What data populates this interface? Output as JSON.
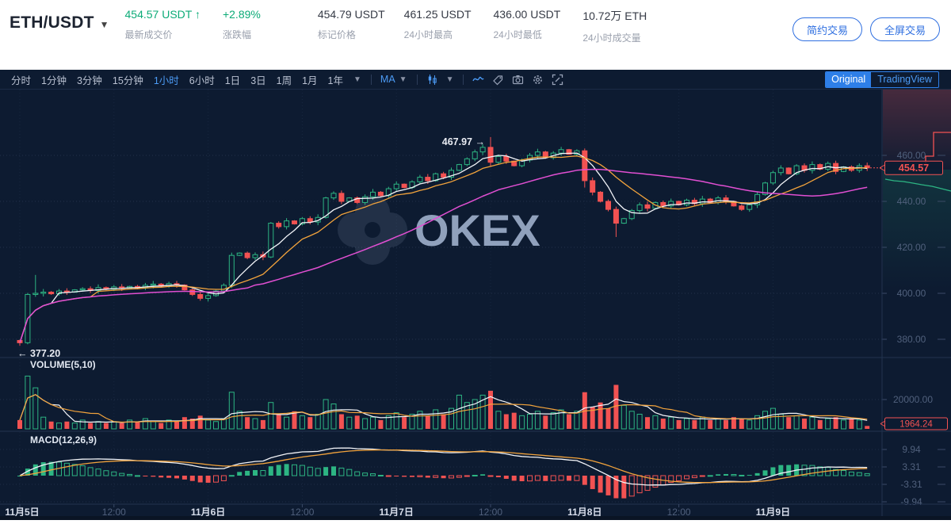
{
  "header": {
    "symbol": "ETH/USDT",
    "last_price": "454.57 USDT",
    "last_price_arrow": "↑",
    "last_price_label": "最新成交价",
    "change": "+2.89%",
    "change_label": "涨跌幅",
    "stats": [
      {
        "value": "454.79 USDT",
        "label": "标记价格"
      },
      {
        "value": "461.25 USDT",
        "label": "24小时最高"
      },
      {
        "value": "436.00 USDT",
        "label": "24小时最低"
      },
      {
        "value": "10.72万 ETH",
        "label": "24小时成交量"
      }
    ],
    "buttons": [
      "简约交易",
      "全屏交易"
    ]
  },
  "toolbar": {
    "timeframes": [
      "分时",
      "1分钟",
      "3分钟",
      "15分钟",
      "1小时",
      "6小时",
      "1日",
      "3日",
      "1周",
      "1月",
      "1年"
    ],
    "active_timeframe": "1小时",
    "ma_label": "MA",
    "icon_ids": [
      "candle-type",
      "line-style",
      "compare",
      "camera",
      "settings",
      "fullscreen"
    ],
    "toggle": {
      "original": "Original",
      "tradingview": "TradingView"
    }
  },
  "watermark": "OKEX",
  "colors": {
    "up": "#2db583",
    "down": "#f25252",
    "ma_fast": "#f2f4f8",
    "ma_mid": "#f2a33c",
    "ma_slow": "#e14fd2",
    "accent_blue": "#4c9bf5",
    "header_green": "#0cab77",
    "axis_dim": "#50607c",
    "axis_bright": "#d8deeb",
    "grid": "#6e82aa",
    "separator": "#223350",
    "bg": "#0d1b31"
  },
  "chart_data": {
    "type": "candlestick",
    "title": "ETH/USDT 1小时 K线 (OKEX)",
    "price_axis": {
      "ticks": [
        {
          "label": "460.00",
          "price": 460
        },
        {
          "label": "440.00",
          "price": 440
        },
        {
          "label": "420.00",
          "price": 420
        },
        {
          "label": "400.00",
          "price": 400
        },
        {
          "label": "380.00",
          "price": 380
        }
      ],
      "last_price_label": "454.57",
      "last_price": 454.57
    },
    "annotations": {
      "high_label": "467.97 →",
      "high_price": 467.97,
      "low_label": "← 377.20",
      "low_price": 377.2
    },
    "time_axis": [
      {
        "i": 0,
        "label": "11月5日",
        "major": true
      },
      {
        "i": 12,
        "label": "12:00",
        "major": false
      },
      {
        "i": 24,
        "label": "11月6日",
        "major": true
      },
      {
        "i": 36,
        "label": "12:00",
        "major": false
      },
      {
        "i": 48,
        "label": "11月7日",
        "major": true
      },
      {
        "i": 60,
        "label": "12:00",
        "major": false
      },
      {
        "i": 72,
        "label": "11月8日",
        "major": true
      },
      {
        "i": 84,
        "label": "12:00",
        "major": false
      },
      {
        "i": 96,
        "label": "11月9日",
        "major": true
      }
    ],
    "open0": 379.5,
    "closes": [
      378.5,
      399.5,
      400.0,
      400.5,
      399.8,
      401.0,
      400.5,
      401.5,
      402.0,
      401.2,
      402.5,
      401.8,
      402.8,
      402.2,
      403.0,
      402.4,
      403.5,
      404.0,
      403.2,
      404.2,
      403.6,
      401.5,
      399.5,
      397.8,
      399.0,
      401.0,
      403.5,
      416.5,
      417.5,
      415.5,
      416.8,
      415.8,
      430.5,
      429.0,
      431.5,
      430.2,
      432.5,
      431.0,
      433.0,
      441.5,
      443.5,
      440.0,
      441.5,
      439.5,
      442.0,
      444.0,
      442.5,
      445.5,
      447.5,
      446.0,
      448.5,
      450.5,
      449.0,
      452.0,
      450.5,
      453.5,
      456.0,
      458.5,
      461.5,
      463.5,
      457.0,
      459.5,
      457.5,
      455.5,
      458.0,
      460.0,
      461.5,
      459.0,
      461.0,
      462.5,
      460.5,
      462.0,
      449.0,
      444.0,
      440.0,
      436.5,
      430.5,
      432.5,
      436.0,
      438.5,
      437.0,
      439.5,
      438.0,
      440.0,
      438.5,
      440.5,
      439.0,
      441.0,
      439.5,
      441.5,
      440.0,
      438.0,
      436.5,
      438.5,
      443.0,
      448.0,
      452.5,
      454.5,
      452.0,
      455.5,
      453.5,
      456.0,
      454.0,
      456.5,
      453.0,
      455.0,
      453.5,
      455.5,
      454.57
    ],
    "wick_overrides": {
      "0": {
        "l": 377.2
      },
      "2": {
        "h": 408.0
      },
      "60": {
        "h": 467.97,
        "l": 455.0
      },
      "72": {
        "l": 446.0
      },
      "76": {
        "l": 424.5
      }
    },
    "volume": {
      "label": "VOLUME(5,10)",
      "axis_tick": {
        "label": "20000.00",
        "value": 20000
      },
      "last_label": "1964.24",
      "values_k": [
        6,
        36,
        28,
        8,
        5,
        4,
        5,
        4,
        6,
        4,
        5,
        4,
        5,
        4,
        6,
        5,
        7,
        5,
        4,
        6,
        5,
        8,
        7,
        9,
        6,
        5,
        7,
        25,
        12,
        8,
        7,
        6,
        18,
        10,
        8,
        12,
        9,
        8,
        10,
        20,
        17,
        10,
        8,
        9,
        7,
        8,
        6,
        9,
        11,
        8,
        10,
        12,
        9,
        13,
        10,
        14,
        23,
        18,
        20,
        23,
        26,
        12,
        10,
        11,
        9,
        10,
        12,
        9,
        11,
        13,
        10,
        12,
        25,
        15,
        18,
        14,
        30,
        16,
        12,
        10,
        8,
        9,
        7,
        8,
        6,
        7,
        6,
        8,
        6,
        7,
        6,
        8,
        7,
        6,
        9,
        12,
        14,
        10,
        8,
        9,
        7,
        8,
        6,
        7,
        8,
        6,
        7,
        6,
        2
      ]
    },
    "macd": {
      "label": "MACD(12,26,9)",
      "ticks": [
        {
          "label": "9.94",
          "value": 9.94
        },
        {
          "label": "3.31",
          "value": 3.31
        },
        {
          "label": "-3.31",
          "value": -3.31
        },
        {
          "label": "-9.94",
          "value": -9.94
        }
      ],
      "params": {
        "fast": 12,
        "slow": 26,
        "signal": 9
      }
    },
    "ma_windows": {
      "fast": 5,
      "mid": 10,
      "slow": 30
    }
  }
}
